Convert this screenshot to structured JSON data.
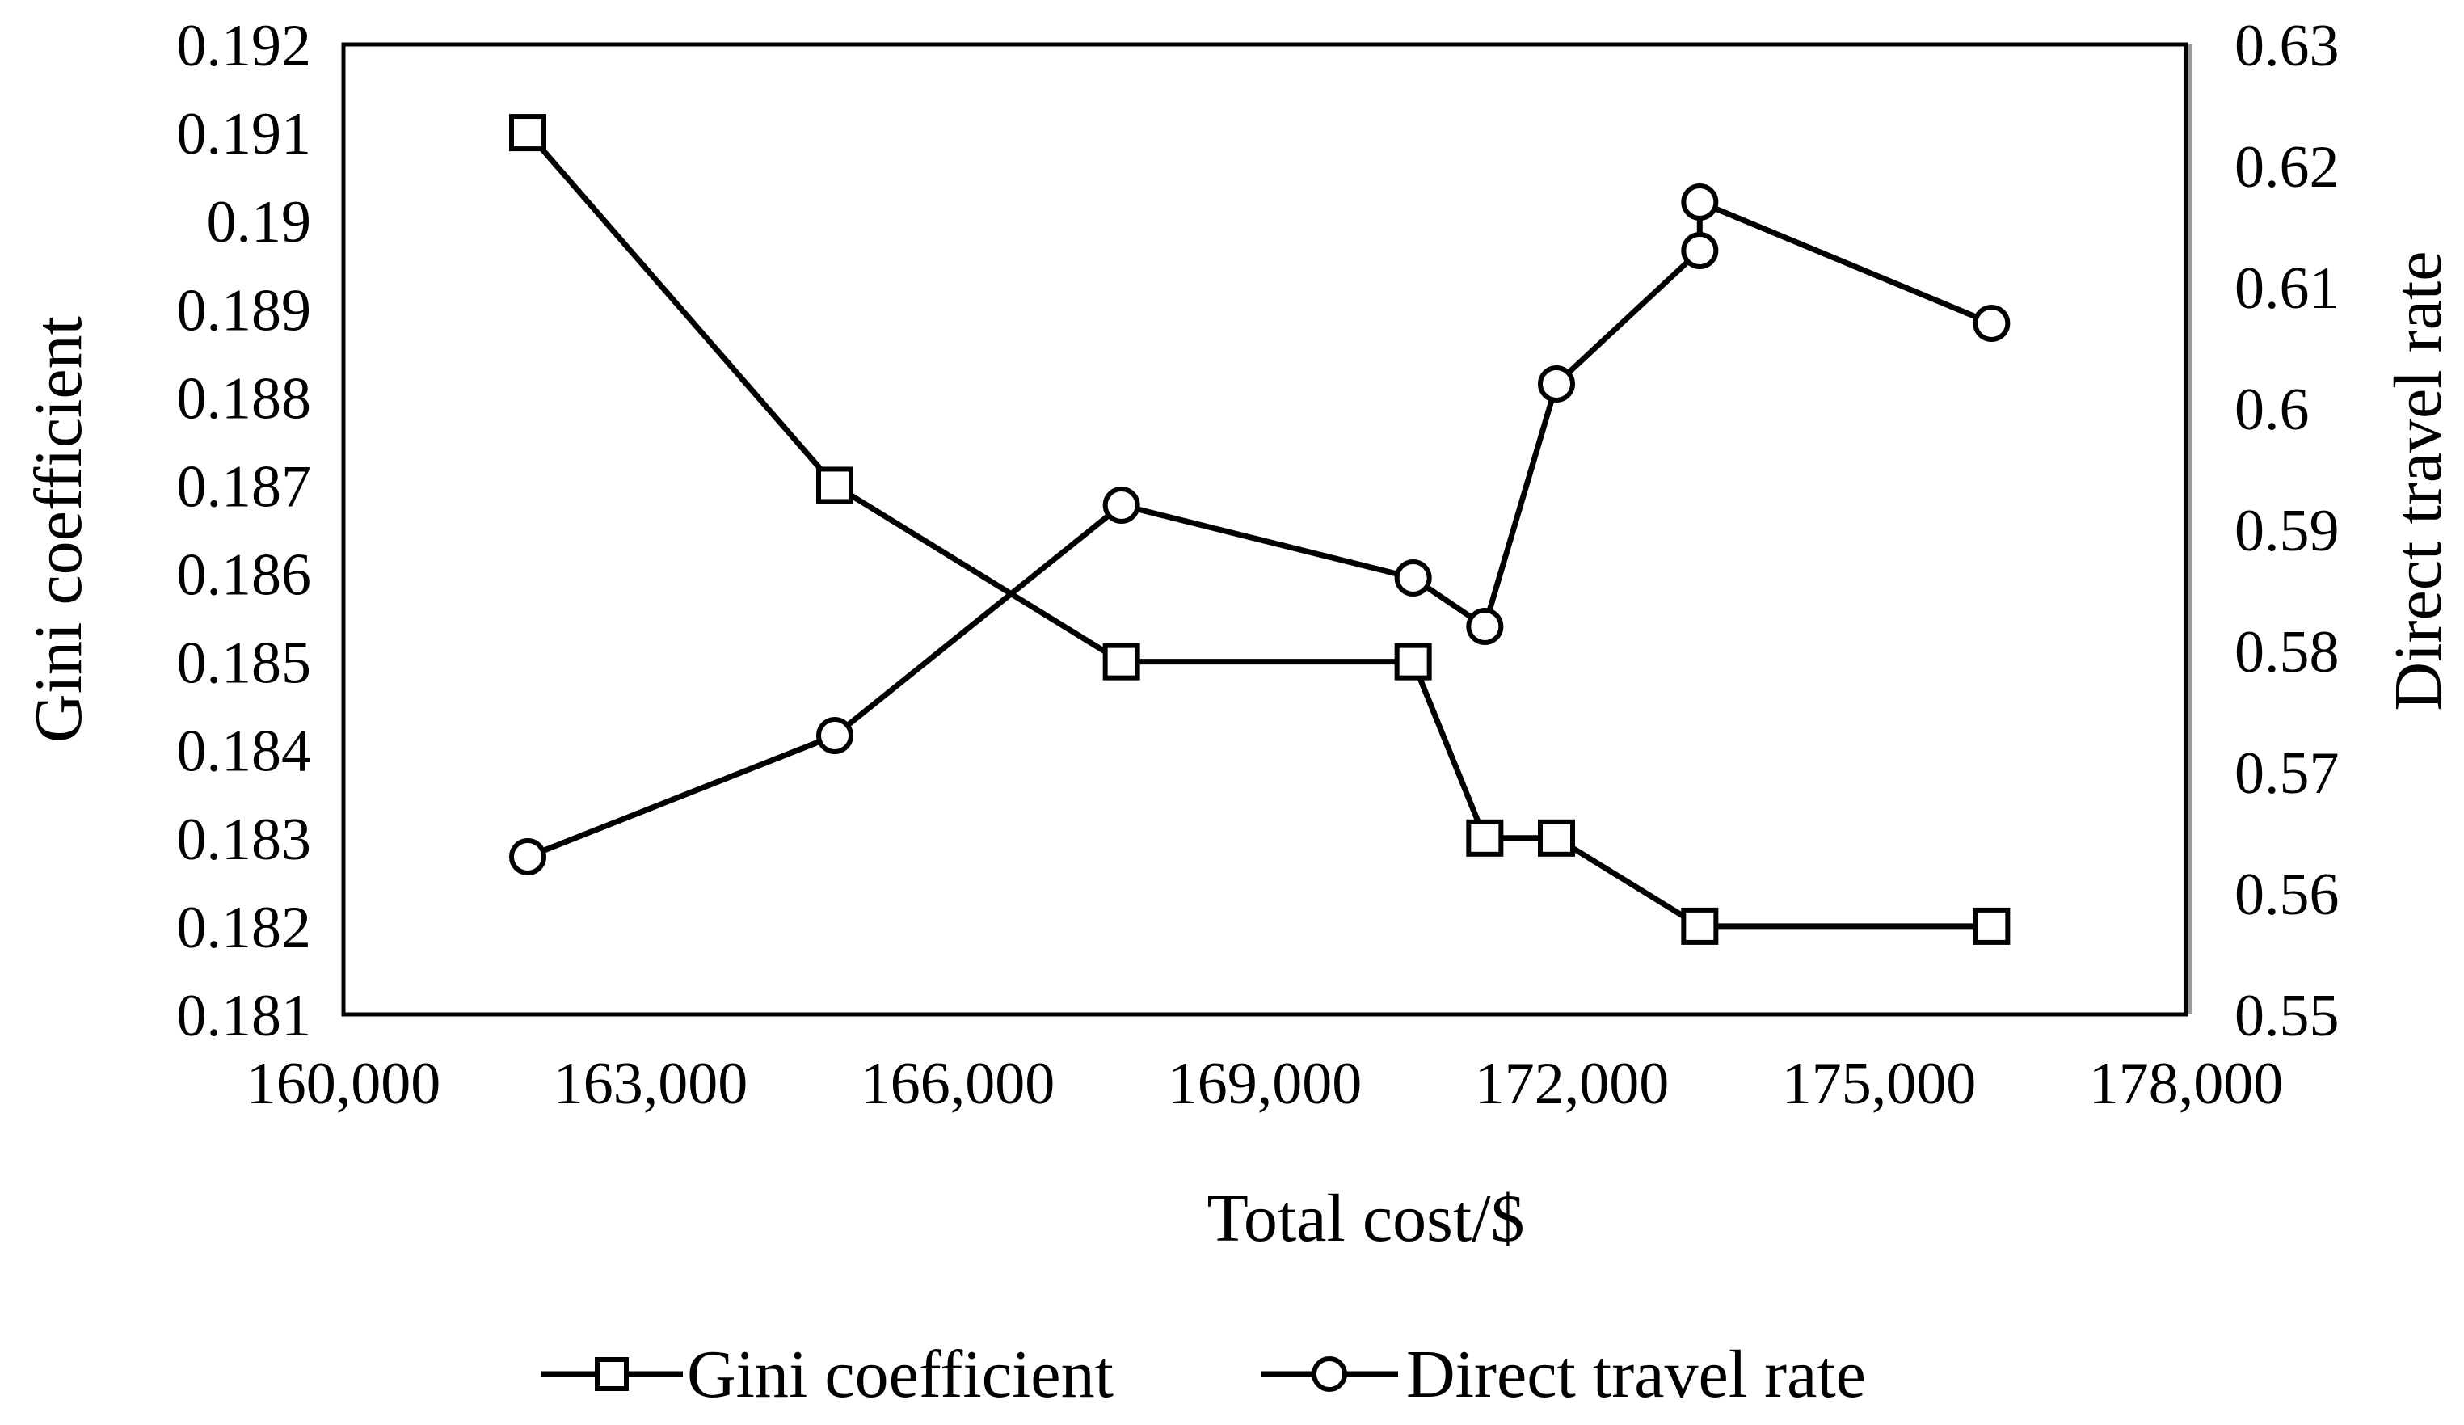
{
  "chart_data": {
    "type": "line",
    "title": "",
    "xlabel": "Total cost/$",
    "ylabel_left": "Gini coefficient",
    "ylabel_right": "Direct travel rate",
    "xlim": [
      160000,
      178000
    ],
    "ylim_left": [
      0.181,
      0.192
    ],
    "ylim_right": [
      0.55,
      0.63
    ],
    "x_ticks": [
      "160,000",
      "163,000",
      "166,000",
      "169,000",
      "172,000",
      "175,000",
      "178,000"
    ],
    "x_tick_values": [
      160000,
      163000,
      166000,
      169000,
      172000,
      175000,
      178000
    ],
    "y_left_ticks": [
      "0.181",
      "0.182",
      "0.183",
      "0.184",
      "0.185",
      "0.186",
      "0.187",
      "0.188",
      "0.189",
      "0.19",
      "0.191",
      "0.192"
    ],
    "y_left_tick_values": [
      0.181,
      0.182,
      0.183,
      0.184,
      0.185,
      0.186,
      0.187,
      0.188,
      0.189,
      0.19,
      0.191,
      0.192
    ],
    "y_right_ticks": [
      "0.55",
      "0.56",
      "0.57",
      "0.58",
      "0.59",
      "0.6",
      "0.61",
      "0.62",
      "0.63"
    ],
    "y_right_tick_values": [
      0.55,
      0.56,
      0.57,
      0.58,
      0.59,
      0.6,
      0.61,
      0.62,
      0.63
    ],
    "grid": false,
    "legend_position": "bottom",
    "series": [
      {
        "name": "Gini coefficient",
        "axis": "left",
        "marker": "square",
        "color": "#000000",
        "x": [
          161800,
          164800,
          167600,
          170450,
          171150,
          171850,
          173250,
          176100
        ],
        "y": [
          0.191,
          0.187,
          0.185,
          0.185,
          0.183,
          0.183,
          0.182,
          0.182
        ]
      },
      {
        "name": "Direct travel rate",
        "axis": "right",
        "marker": "circle",
        "color": "#000000",
        "x": [
          161800,
          164800,
          167600,
          170450,
          171150,
          171850,
          173250,
          173250,
          176100
        ],
        "y": [
          0.563,
          0.573,
          0.592,
          0.586,
          0.582,
          0.602,
          0.613,
          0.617,
          0.607
        ]
      }
    ]
  }
}
